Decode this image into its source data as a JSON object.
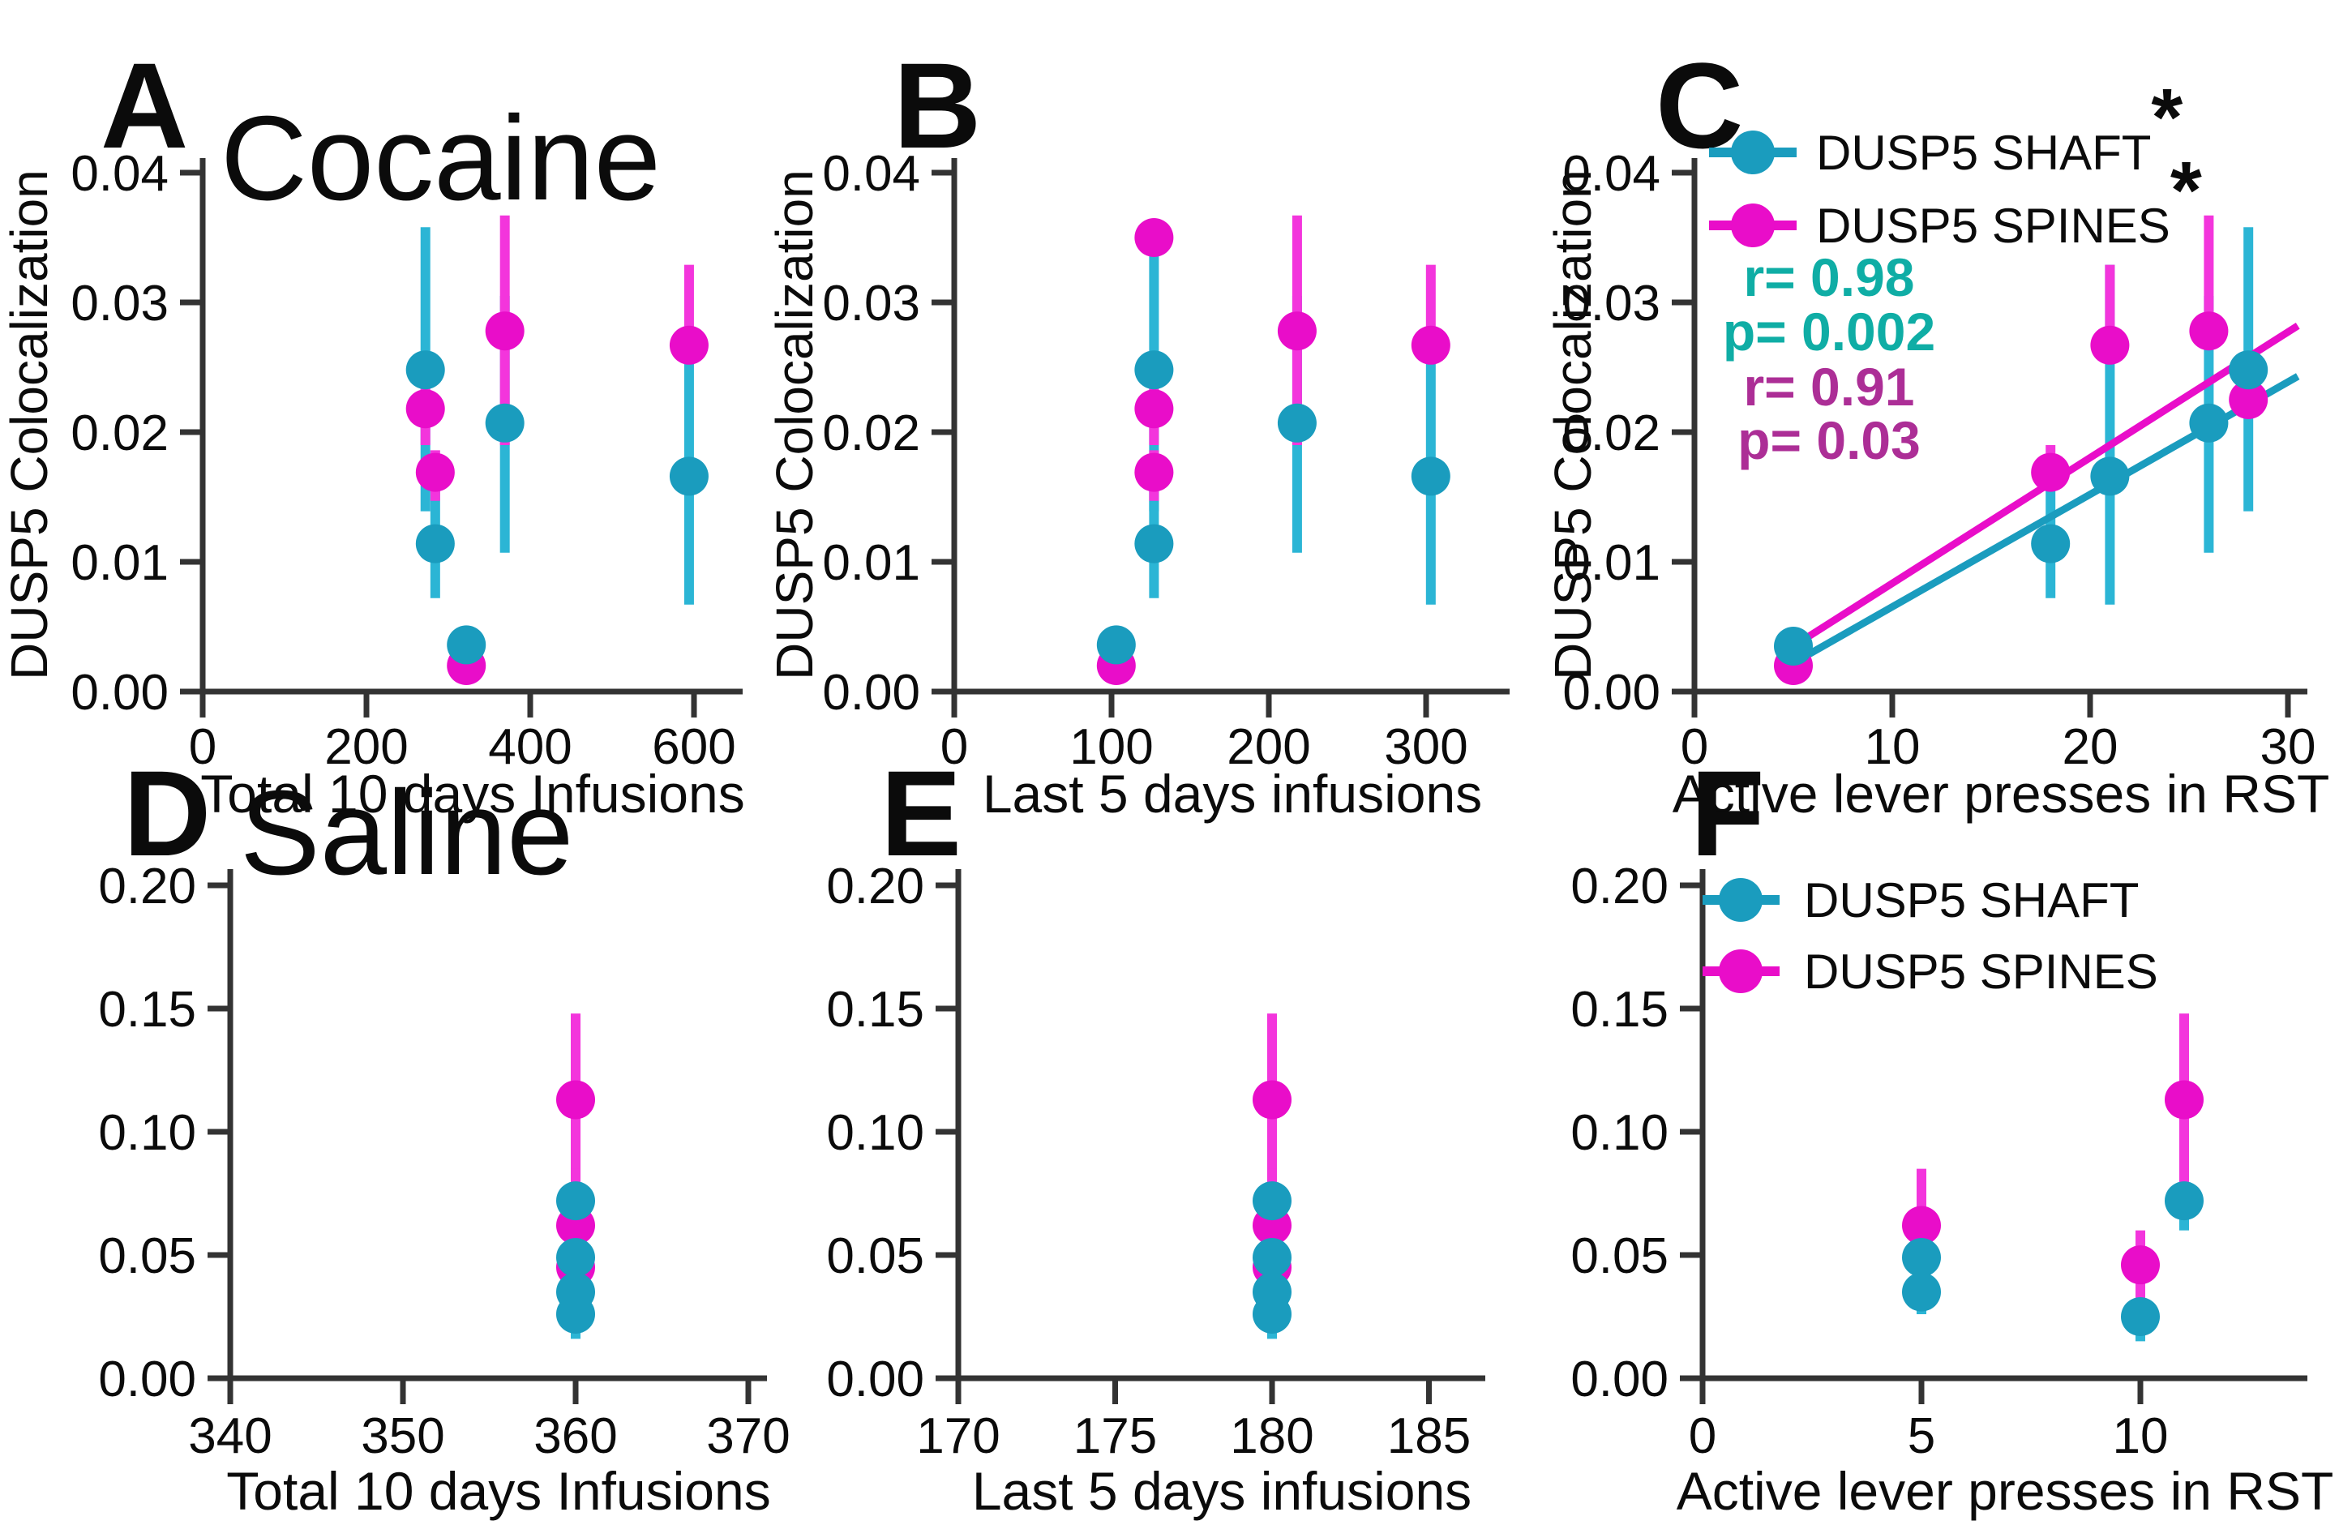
{
  "figure": {
    "description": "Six-panel scatter figure of DUSP5 colocalization in cocaine vs saline rats",
    "group_titles": [
      "Cocaine",
      "Saline"
    ],
    "series_names": [
      "DUSP5 SHAFT",
      "DUSP5 SPINES"
    ]
  },
  "colors": {
    "shaft_dot": "#1A9CBE",
    "shaft_bar": "#2BB5D5",
    "spines_dot": "#E90DC9",
    "spines_bar": "#F335DC",
    "stats_teal": "#0FADA5",
    "stats_purple": "#AC2E96",
    "axis": "#333333",
    "text": "#0B0B0B"
  },
  "point_format": "[x, y, err_lo, err_hi]",
  "chart_data": [
    {
      "id": "A",
      "type": "scatter",
      "panel_label": "A",
      "title": "Cocaine",
      "ylabel": "DUSP5 Colocalization",
      "xlabel": "Total 10 days Infusions",
      "ylim": [
        0,
        0.04
      ],
      "ytick_values": [
        0,
        0.01,
        0.02,
        0.03,
        0.04
      ],
      "ytick_labels": [
        "0.00",
        "0.01",
        "0.02",
        "0.03",
        "0.04"
      ],
      "xtick_values": [
        0,
        200,
        400,
        600
      ],
      "xtick_labels": [
        "0",
        "200",
        "400",
        "600"
      ],
      "series": [
        {
          "name": "DUSP5 SHAFT",
          "color_key": "shaft",
          "points": [
            [
              272,
              0.0248,
              0.0139,
              0.0358
            ],
            [
              284,
              0.0114,
              0.0072,
              0.016
            ],
            [
              322,
              0.0036,
              0.0036,
              0.0036
            ],
            [
              369,
              0.0207,
              0.0107,
              0.0305
            ],
            [
              594,
              0.0166,
              0.0067,
              0.0265
            ]
          ]
        },
        {
          "name": "DUSP5 SPINES",
          "color_key": "spines",
          "points": [
            [
              272,
              0.0218,
              0.019,
              0.0255
            ],
            [
              284,
              0.0169,
              0.0147,
              0.0186
            ],
            [
              322,
              0.002,
              0.002,
              0.002
            ],
            [
              369,
              0.0278,
              0.019,
              0.0367
            ],
            [
              594,
              0.0267,
              0.0267,
              0.0329
            ]
          ]
        }
      ]
    },
    {
      "id": "B",
      "type": "scatter",
      "panel_label": "B",
      "title": "",
      "ylabel": "DUSP5 Colocalization",
      "xlabel": "Last 5 days infusions",
      "ylim": [
        0,
        0.04
      ],
      "ytick_values": [
        0,
        0.01,
        0.02,
        0.03,
        0.04
      ],
      "ytick_labels": [
        "0.00",
        "0.01",
        "0.02",
        "0.03",
        "0.04"
      ],
      "xtick_values": [
        0,
        100,
        200,
        300
      ],
      "xtick_labels": [
        "0",
        "100",
        "200",
        "300"
      ],
      "series": [
        {
          "name": "DUSP5 SHAFT",
          "color_key": "shaft",
          "points": [
            [
              103,
              0.0036,
              0.0036,
              0.0036
            ],
            [
              127,
              0.0248,
              0.0139,
              0.0355
            ],
            [
              127,
              0.0114,
              0.0072,
              0.016
            ],
            [
              218,
              0.0207,
              0.0107,
              0.0305
            ],
            [
              303,
              0.0166,
              0.0067,
              0.0265
            ]
          ]
        },
        {
          "name": "DUSP5 SPINES",
          "color_key": "spines",
          "points": [
            [
              103,
              0.002,
              0.002,
              0.002
            ],
            [
              127,
              0.035,
              0.035,
              0.036
            ],
            [
              127,
              0.0218,
              0.019,
              0.0255
            ],
            [
              127,
              0.0169,
              0.0147,
              0.0186
            ],
            [
              218,
              0.0278,
              0.019,
              0.0367
            ],
            [
              303,
              0.0267,
              0.0267,
              0.0329
            ]
          ]
        }
      ]
    },
    {
      "id": "C",
      "type": "scatter",
      "panel_label": "C",
      "title": "",
      "ylabel": "DUSP5 Colocalization",
      "xlabel": "Active lever presses in RST",
      "ylim": [
        0,
        0.04
      ],
      "ytick_values": [
        0,
        0.01,
        0.02,
        0.03,
        0.04
      ],
      "ytick_labels": [
        "0.00",
        "0.01",
        "0.02",
        "0.03",
        "0.04"
      ],
      "xtick_values": [
        0,
        10,
        20,
        30
      ],
      "xtick_labels": [
        "0",
        "10",
        "20",
        "30"
      ],
      "legend": {
        "items": [
          {
            "label": "DUSP5 SHAFT",
            "suffix": "*",
            "color_key": "shaft"
          },
          {
            "label": "DUSP5 SPINES",
            "suffix": "*",
            "color_key": "spines"
          }
        ]
      },
      "stats": [
        {
          "text": "r= 0.98",
          "color_key": "teal"
        },
        {
          "text": "p= 0.002",
          "color_key": "teal"
        },
        {
          "text": "r= 0.91",
          "color_key": "purple"
        },
        {
          "text": "p= 0.03",
          "color_key": "purple"
        }
      ],
      "regression": [
        {
          "series": "shaft",
          "x1": 5,
          "y1": 0.0022,
          "x2": 30.5,
          "y2": 0.0243
        },
        {
          "series": "spines",
          "x1": 5,
          "y1": 0.0035,
          "x2": 30.5,
          "y2": 0.0282
        }
      ],
      "series": [
        {
          "name": "DUSP5 SHAFT",
          "color_key": "shaft",
          "points": [
            [
              5,
              0.0035,
              0.0035,
              0.0035
            ],
            [
              18,
              0.0114,
              0.0072,
              0.016
            ],
            [
              21,
              0.0166,
              0.0067,
              0.0329
            ],
            [
              26,
              0.0207,
              0.0107,
              0.0305
            ],
            [
              28,
              0.0248,
              0.0139,
              0.0358
            ]
          ]
        },
        {
          "name": "DUSP5 SPINES",
          "color_key": "spines",
          "points": [
            [
              5,
              0.002,
              0.002,
              0.002
            ],
            [
              18,
              0.0169,
              0.0155,
              0.019
            ],
            [
              21,
              0.0267,
              0.0267,
              0.0329
            ],
            [
              26,
              0.0278,
              0.0278,
              0.0367
            ],
            [
              28,
              0.0225,
              0.0225,
              0.0225
            ]
          ]
        }
      ]
    },
    {
      "id": "D",
      "type": "scatter",
      "panel_label": "D",
      "title": "Saline",
      "ylabel": "",
      "xlabel": "Total 10 days Infusions",
      "ylim": [
        0,
        0.2
      ],
      "ytick_values": [
        0,
        0.05,
        0.1,
        0.15,
        0.2
      ],
      "ytick_labels": [
        "0.00",
        "0.05",
        "0.10",
        "0.15",
        "0.20"
      ],
      "xtick_values": [
        340,
        350,
        360,
        370
      ],
      "xtick_labels": [
        "340",
        "350",
        "360",
        "370"
      ],
      "series": [
        {
          "name": "DUSP5 SHAFT",
          "color_key": "shaft",
          "points": [
            [
              360,
              0.072,
              0.06,
              0.081
            ],
            [
              360,
              0.049,
              0.036,
              0.061
            ],
            [
              360,
              0.035,
              0.026,
              0.044
            ],
            [
              360,
              0.026,
              0.016,
              0.033
            ]
          ]
        },
        {
          "name": "DUSP5 SPINES",
          "color_key": "spines",
          "points": [
            [
              360,
              0.113,
              0.079,
              0.148
            ],
            [
              360,
              0.062,
              0.04,
              0.085
            ],
            [
              360,
              0.045,
              0.03,
              0.06
            ]
          ]
        }
      ]
    },
    {
      "id": "E",
      "type": "scatter",
      "panel_label": "E",
      "title": "",
      "ylabel": "",
      "xlabel": "Last 5 days infusions",
      "ylim": [
        0,
        0.2
      ],
      "ytick_values": [
        0,
        0.05,
        0.1,
        0.15,
        0.2
      ],
      "ytick_labels": [
        "0.00",
        "0.05",
        "0.10",
        "0.15",
        "0.20"
      ],
      "xtick_values": [
        170,
        175,
        180,
        185
      ],
      "xtick_labels": [
        "170",
        "175",
        "180",
        "185"
      ],
      "series": [
        {
          "name": "DUSP5 SHAFT",
          "color_key": "shaft",
          "points": [
            [
              180,
              0.072,
              0.06,
              0.081
            ],
            [
              180,
              0.049,
              0.036,
              0.061
            ],
            [
              180,
              0.035,
              0.026,
              0.044
            ],
            [
              180,
              0.026,
              0.016,
              0.033
            ]
          ]
        },
        {
          "name": "DUSP5 SPINES",
          "color_key": "spines",
          "points": [
            [
              180,
              0.113,
              0.079,
              0.148
            ],
            [
              180,
              0.062,
              0.04,
              0.085
            ],
            [
              180,
              0.045,
              0.03,
              0.06
            ]
          ]
        }
      ]
    },
    {
      "id": "F",
      "type": "scatter",
      "panel_label": "F",
      "title": "",
      "ylabel": "",
      "xlabel": "Active lever presses in RST",
      "ylim": [
        0,
        0.2
      ],
      "ytick_values": [
        0,
        0.05,
        0.1,
        0.15,
        0.2
      ],
      "ytick_labels": [
        "0.00",
        "0.05",
        "0.10",
        "0.15",
        "0.20"
      ],
      "xtick_values": [
        0,
        5,
        10
      ],
      "xtick_labels": [
        "0",
        "5",
        "10"
      ],
      "legend": {
        "items": [
          {
            "label": "DUSP5 SHAFT",
            "suffix": "",
            "color_key": "shaft"
          },
          {
            "label": "DUSP5 SPINES",
            "suffix": "",
            "color_key": "spines"
          }
        ]
      },
      "series": [
        {
          "name": "DUSP5 SHAFT",
          "color_key": "shaft",
          "points": [
            [
              5,
              0.049,
              0.036,
              0.061
            ],
            [
              5,
              0.035,
              0.026,
              0.044
            ],
            [
              10,
              0.025,
              0.015,
              0.031
            ],
            [
              11,
              0.072,
              0.06,
              0.081
            ]
          ]
        },
        {
          "name": "DUSP5 SPINES",
          "color_key": "spines",
          "points": [
            [
              5,
              0.062,
              0.04,
              0.085
            ],
            [
              10,
              0.046,
              0.03,
              0.06
            ],
            [
              11,
              0.113,
              0.079,
              0.148
            ]
          ]
        }
      ]
    }
  ]
}
